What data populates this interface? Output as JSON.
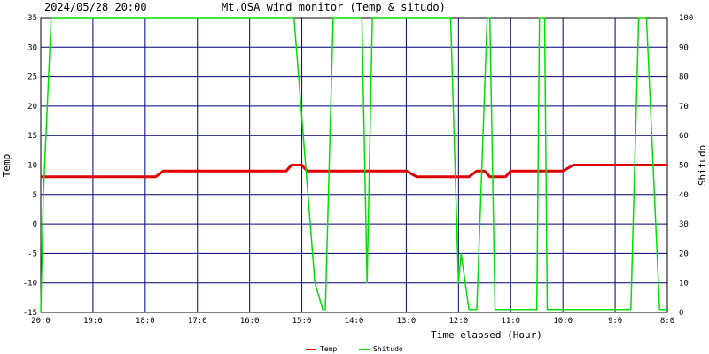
{
  "header": {
    "datetime": "2024/05/28 20:00",
    "title": "Mt.OSA wind monitor (Temp & situdo)"
  },
  "chart_data": {
    "type": "line",
    "xlabel": "Time elapsed (Hour)",
    "ylabel_left": "Temp",
    "ylabel_right": "Shitudo",
    "xlim": [
      0,
      12
    ],
    "ylim_left": [
      -15,
      35
    ],
    "ylim_right": [
      0,
      100
    ],
    "grid": true,
    "legend_position": "bottom-center",
    "x_tick_values": [
      0,
      1,
      2,
      3,
      4,
      5,
      6,
      7,
      8,
      9,
      10,
      11,
      12
    ],
    "x_tick_labels": [
      "20:0",
      "19:0",
      "18:0",
      "17:0",
      "16:0",
      "15:0",
      "14:0",
      "13:0",
      "12:0",
      "11:0",
      "10:0",
      "9:0",
      "8:0"
    ],
    "y_left_ticks": [
      -15,
      -10,
      -5,
      0,
      5,
      10,
      15,
      20,
      25,
      30,
      35
    ],
    "y_right_ticks": [
      0,
      10,
      20,
      30,
      40,
      50,
      60,
      70,
      80,
      90,
      100
    ],
    "colors": {
      "background": "#ffffff",
      "grid": "#00007a",
      "axis": "#000000",
      "temp": "#e00000",
      "shitudo": "#00e000"
    },
    "series": [
      {
        "name": "Temp",
        "axis": "left",
        "x": [
          0,
          2.2,
          2.35,
          4.7,
          4.8,
          5.0,
          5.1,
          7.0,
          7.2,
          8.2,
          8.35,
          8.5,
          8.6,
          8.9,
          9.0,
          10.0,
          10.2,
          12.0
        ],
        "y": [
          8,
          8,
          9,
          9,
          10,
          10,
          9,
          9,
          8,
          8,
          9,
          9,
          8,
          8,
          9,
          9,
          10,
          10
        ]
      },
      {
        "name": "Shitudo",
        "axis": "right",
        "x": [
          0,
          0.05,
          0.2,
          4.85,
          5.25,
          5.4,
          5.45,
          5.6,
          6.15,
          6.25,
          6.35,
          7.85,
          8.0,
          8.05,
          8.2,
          8.35,
          8.55,
          8.6,
          8.7,
          9.0,
          9.5,
          9.55,
          9.65,
          9.7,
          9.8,
          10.25,
          11.3,
          11.45,
          11.6,
          11.85,
          12.0
        ],
        "y": [
          0,
          40,
          100,
          100,
          10,
          1,
          1,
          100,
          100,
          10,
          100,
          100,
          10,
          20,
          1,
          1,
          100,
          100,
          1,
          1,
          1,
          100,
          100,
          1,
          1,
          1,
          1,
          100,
          100,
          1,
          1
        ]
      }
    ]
  },
  "legend": {
    "items": [
      {
        "name": "Temp"
      },
      {
        "name": "Shitudo"
      }
    ]
  }
}
